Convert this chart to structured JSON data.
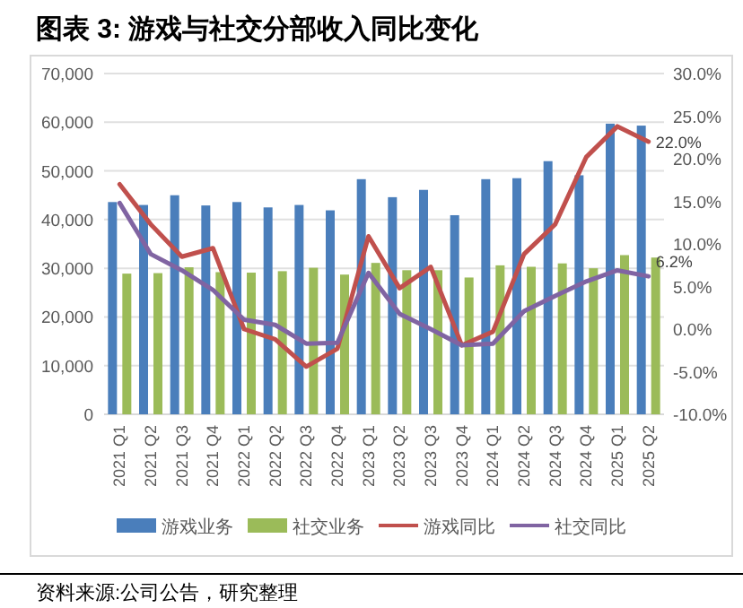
{
  "chart_data": {
    "type": "bar",
    "title": "图表 3: 游戏与社交分部收入同比变化",
    "categories": [
      "2021 Q1",
      "2021 Q2",
      "2021 Q3",
      "2021 Q4",
      "2022 Q1",
      "2022 Q2",
      "2022 Q3",
      "2022 Q4",
      "2023 Q1",
      "2023 Q2",
      "2023 Q3",
      "2023 Q4",
      "2024 Q1",
      "2024 Q2",
      "2024 Q3",
      "2024 Q4",
      "2025 Q1",
      "2025 Q2"
    ],
    "series": [
      {
        "name": "游戏业务",
        "color": "#4a7ebb",
        "values": [
          43600,
          43000,
          45000,
          42900,
          43600,
          42500,
          43000,
          41900,
          48300,
          44600,
          46100,
          40900,
          48300,
          48500,
          52000,
          49100,
          59700,
          59300
        ]
      },
      {
        "name": "社交业务",
        "color": "#9bbb59",
        "values": [
          28900,
          29000,
          30200,
          29200,
          29100,
          29400,
          30100,
          28700,
          31100,
          29600,
          29600,
          28100,
          30600,
          30300,
          31000,
          30000,
          32700,
          32200
        ]
      },
      {
        "name": "游戏同比",
        "type": "line",
        "axis": "y2",
        "color": "#c0504d",
        "values": [
          17.0,
          12.3,
          8.5,
          9.5,
          0.0,
          -1.2,
          -4.4,
          -2.3,
          10.9,
          4.8,
          7.3,
          -1.9,
          -0.3,
          8.8,
          12.3,
          20.2,
          23.8,
          22.0
        ],
        "value_labels": [
          null,
          null,
          null,
          null,
          null,
          null,
          null,
          null,
          null,
          null,
          null,
          null,
          null,
          null,
          null,
          null,
          null,
          "22.0%"
        ]
      },
      {
        "name": "社交同比",
        "type": "line",
        "axis": "y2",
        "color": "#8064a2",
        "values": [
          14.8,
          8.8,
          6.9,
          4.6,
          1.1,
          0.5,
          -1.7,
          -1.6,
          6.6,
          1.8,
          0.0,
          -1.9,
          -1.7,
          2.1,
          3.9,
          5.6,
          6.9,
          6.2
        ],
        "value_labels": [
          null,
          null,
          null,
          null,
          null,
          null,
          null,
          null,
          null,
          null,
          null,
          null,
          null,
          null,
          null,
          null,
          null,
          "6.2%"
        ]
      }
    ],
    "ylim": [
      0,
      70000
    ],
    "yticks": [
      0,
      {
        "value": 10000,
        "label": "10,000"
      },
      {
        "value": 20000,
        "label": "20,000"
      },
      {
        "value": 30000,
        "label": "30,000"
      },
      {
        "value": 40000,
        "label": "40,000"
      },
      {
        "value": 50000,
        "label": "50,000"
      },
      {
        "value": 60000,
        "label": "60,000"
      },
      {
        "value": 70000,
        "label": "70,000"
      }
    ],
    "y2lim": [
      -10,
      30
    ],
    "y2ticks": [
      {
        "value": -10,
        "label": "-10.0%"
      },
      {
        "value": -5,
        "label": "-5.0%"
      },
      {
        "value": 0,
        "label": "0.0%"
      },
      {
        "value": 5,
        "label": "5.0%"
      },
      {
        "value": 10,
        "label": "10.0%"
      },
      {
        "value": 15,
        "label": "15.0%"
      },
      {
        "value": 20,
        "label": "20.0%"
      },
      {
        "value": 25,
        "label": "25.0%"
      },
      {
        "value": 30,
        "label": "30.0%"
      }
    ],
    "grid": "y",
    "legend": "bottom",
    "annotations": [
      "资料来源:公司公告，研究整理"
    ]
  }
}
